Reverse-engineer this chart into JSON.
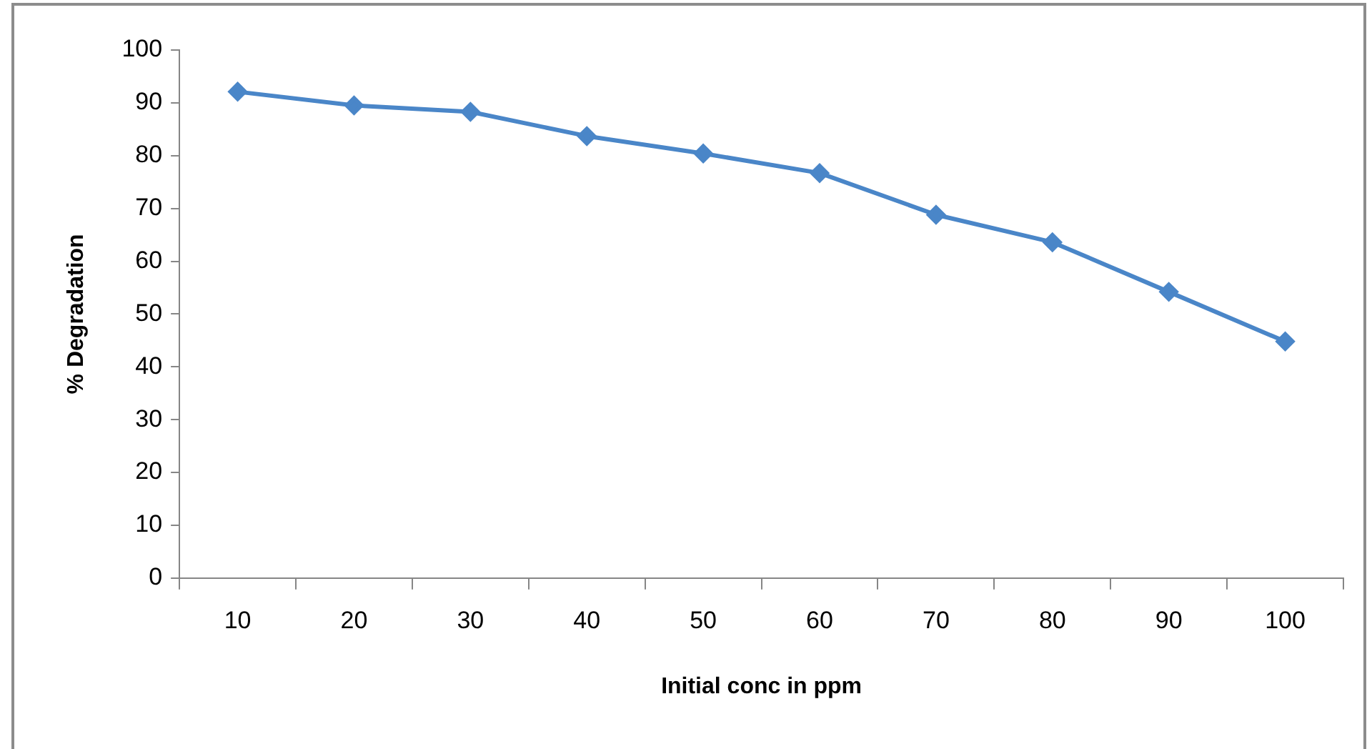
{
  "chart_data": {
    "type": "line",
    "xlabel": "Initial conc in ppm",
    "ylabel": "% Degradation",
    "categories": [
      "10",
      "20",
      "30",
      "40",
      "50",
      "60",
      "70",
      "80",
      "90",
      "100"
    ],
    "series": [
      {
        "color": "#4a86c8",
        "values": [
          92.1,
          89.5,
          88.3,
          83.7,
          80.4,
          76.7,
          68.8,
          63.6,
          54.2,
          44.8
        ]
      }
    ],
    "ylim": [
      0,
      100
    ],
    "yticks": [
      0,
      10,
      20,
      30,
      40,
      50,
      60,
      70,
      80,
      90,
      100
    ],
    "grid": false,
    "legend": false,
    "marker": "diamond",
    "line_style": "solid"
  }
}
